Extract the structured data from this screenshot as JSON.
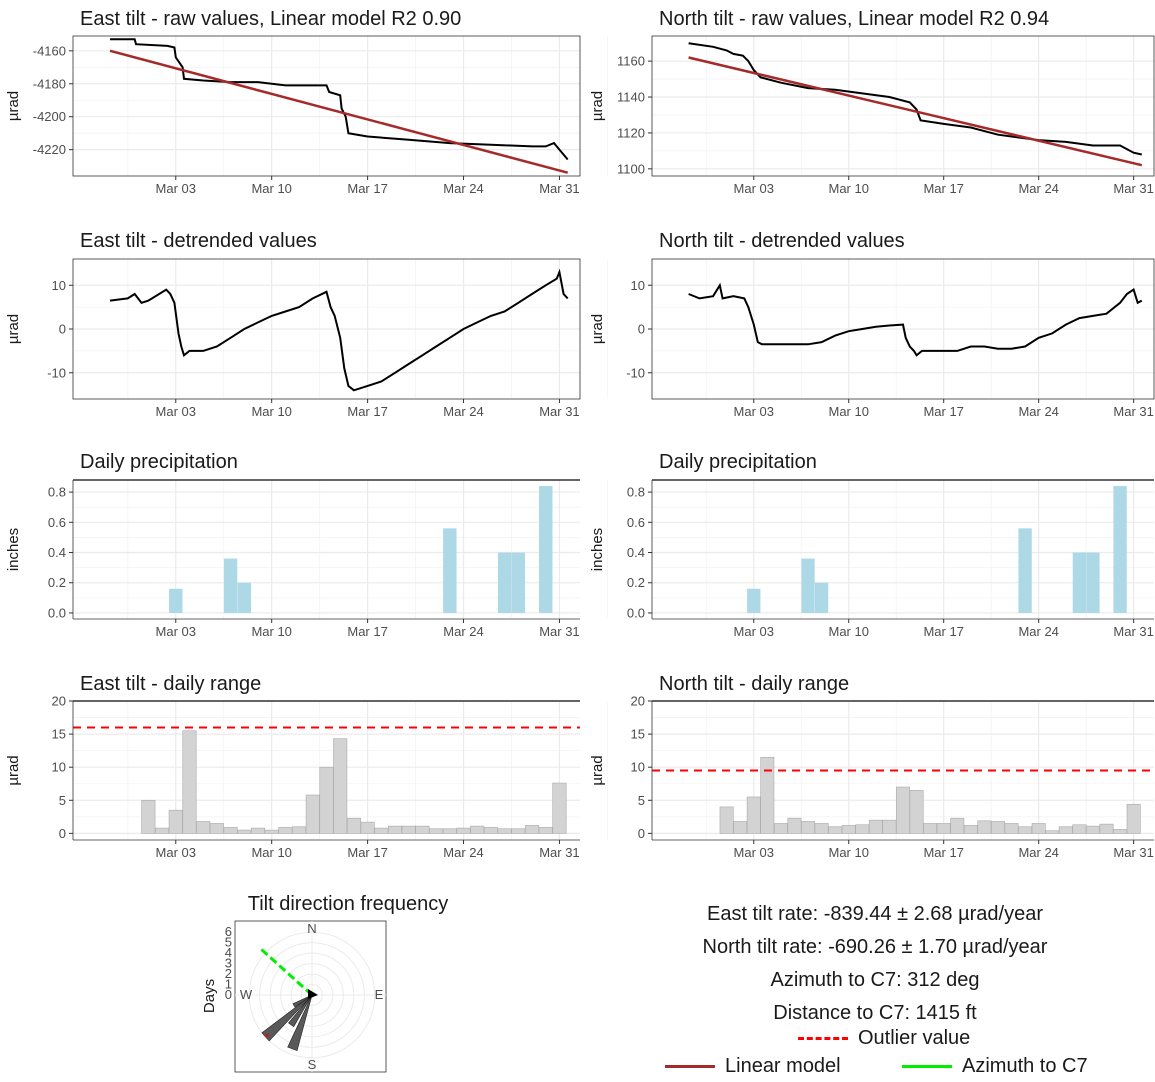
{
  "ticks_date": [
    "Mar 03",
    "Mar 10",
    "Mar 17",
    "Mar 24",
    "Mar 31"
  ],
  "colors": {
    "line": "#000000",
    "model": "#a52a2a",
    "precip": "#add8e6",
    "range": "#d3d3d3",
    "outlier": "#ff0000",
    "azimuth": "#00ee00",
    "rose": "#595959",
    "grid": "#ebebeb"
  },
  "chart_data": [
    {
      "id": "east_raw",
      "type": "line",
      "title": "East tilt - raw values, Linear model R2 0.90",
      "ylabel": "µrad",
      "yticks": [
        "-4160",
        "-4180",
        "-4200",
        "-4220"
      ],
      "yticks_v": [
        -4160,
        -4180,
        -4200,
        -4220
      ],
      "ylim": [
        -4236,
        -4151
      ],
      "xlim": [
        -4.5,
        32.5
      ],
      "series": [
        {
          "name": "raw",
          "pts": [
            [
              -1.8,
              -4153
            ],
            [
              0,
              -4153
            ],
            [
              0.1,
              -4156
            ],
            [
              2.4,
              -4157
            ],
            [
              2.9,
              -4158
            ],
            [
              3,
              -4164
            ],
            [
              3.5,
              -4170
            ],
            [
              3.6,
              -4177
            ],
            [
              5,
              -4178
            ],
            [
              7,
              -4179
            ],
            [
              9,
              -4179
            ],
            [
              11,
              -4181
            ],
            [
              14,
              -4181
            ],
            [
              14.2,
              -4185
            ],
            [
              15,
              -4187
            ],
            [
              15.1,
              -4195
            ],
            [
              15.4,
              -4200
            ],
            [
              15.6,
              -4210
            ],
            [
              17,
              -4212
            ],
            [
              20,
              -4214
            ],
            [
              23,
              -4216
            ],
            [
              26,
              -4217
            ],
            [
              29,
              -4218
            ],
            [
              30,
              -4218
            ],
            [
              30.6,
              -4216
            ],
            [
              31,
              -4220
            ],
            [
              31.6,
              -4226
            ]
          ]
        },
        {
          "name": "Linear model",
          "pts": [
            [
              -1.8,
              -4160
            ],
            [
              31.6,
              -4234
            ]
          ]
        }
      ]
    },
    {
      "id": "north_raw",
      "type": "line",
      "title": "North tilt - raw values, Linear model R2 0.94",
      "ylabel": "µrad",
      "yticks": [
        "1160",
        "1140",
        "1120",
        "1100"
      ],
      "yticks_v": [
        1160,
        1140,
        1120,
        1100
      ],
      "ylim": [
        1096,
        1174
      ],
      "xlim": [
        -4.5,
        32.5
      ],
      "series": [
        {
          "name": "raw",
          "pts": [
            [
              -1.8,
              1170
            ],
            [
              0,
              1168
            ],
            [
              1,
              1166
            ],
            [
              1.5,
              1164
            ],
            [
              2.2,
              1163
            ],
            [
              2.6,
              1160
            ],
            [
              3,
              1155
            ],
            [
              3.5,
              1151
            ],
            [
              5,
              1148
            ],
            [
              7,
              1145
            ],
            [
              9,
              1144
            ],
            [
              11,
              1142
            ],
            [
              13,
              1140
            ],
            [
              14.5,
              1137
            ],
            [
              15,
              1133
            ],
            [
              15.3,
              1127
            ],
            [
              17,
              1125
            ],
            [
              19,
              1123
            ],
            [
              21,
              1119
            ],
            [
              24,
              1116
            ],
            [
              26,
              1115
            ],
            [
              28,
              1113
            ],
            [
              30,
              1113
            ],
            [
              31,
              1109
            ],
            [
              31.6,
              1108
            ]
          ]
        },
        {
          "name": "Linear model",
          "pts": [
            [
              -1.8,
              1162
            ],
            [
              31.6,
              1102
            ]
          ]
        }
      ]
    },
    {
      "id": "east_detr",
      "type": "line",
      "title": "East tilt - detrended values",
      "ylabel": "µrad",
      "yticks": [
        "10",
        "0",
        "-10"
      ],
      "yticks_v": [
        10,
        0,
        -10
      ],
      "ylim": [
        -16,
        16
      ],
      "xlim": [
        -4.5,
        32.5
      ],
      "series": [
        {
          "name": "detrended",
          "pts": [
            [
              -1.8,
              6.5
            ],
            [
              -0.5,
              7
            ],
            [
              0,
              8
            ],
            [
              0.5,
              6
            ],
            [
              1,
              6.5
            ],
            [
              2.3,
              9
            ],
            [
              2.6,
              8
            ],
            [
              2.9,
              6
            ],
            [
              3.2,
              -1
            ],
            [
              3.4,
              -4
            ],
            [
              3.6,
              -6
            ],
            [
              4,
              -5
            ],
            [
              5,
              -5
            ],
            [
              6,
              -4
            ],
            [
              7,
              -2
            ],
            [
              8,
              0
            ],
            [
              9,
              1.5
            ],
            [
              10,
              3
            ],
            [
              11,
              4
            ],
            [
              12,
              5
            ],
            [
              13,
              7
            ],
            [
              14,
              8.5
            ],
            [
              14.3,
              5
            ],
            [
              14.6,
              3
            ],
            [
              15,
              -2
            ],
            [
              15.3,
              -9
            ],
            [
              15.6,
              -13
            ],
            [
              16,
              -14
            ],
            [
              17,
              -13
            ],
            [
              18,
              -12
            ],
            [
              19,
              -10
            ],
            [
              20,
              -8
            ],
            [
              21,
              -6
            ],
            [
              22,
              -4
            ],
            [
              23,
              -2
            ],
            [
              24,
              0
            ],
            [
              25,
              1.5
            ],
            [
              26,
              3
            ],
            [
              27,
              4
            ],
            [
              28,
              6
            ],
            [
              29,
              8
            ],
            [
              30,
              10
            ],
            [
              30.8,
              11.5
            ],
            [
              31,
              13
            ],
            [
              31.3,
              8
            ],
            [
              31.6,
              7
            ]
          ]
        }
      ]
    },
    {
      "id": "north_detr",
      "type": "line",
      "title": "North tilt - detrended values",
      "ylabel": "µrad",
      "yticks": [
        "10",
        "0",
        "-10"
      ],
      "yticks_v": [
        10,
        0,
        -10
      ],
      "ylim": [
        -16,
        16
      ],
      "xlim": [
        -4.5,
        32.5
      ],
      "series": [
        {
          "name": "detrended",
          "pts": [
            [
              -1.8,
              8
            ],
            [
              -1,
              7
            ],
            [
              0,
              7.5
            ],
            [
              0.5,
              10
            ],
            [
              0.7,
              7
            ],
            [
              1.5,
              7.5
            ],
            [
              2.3,
              7
            ],
            [
              2.6,
              5
            ],
            [
              3,
              1
            ],
            [
              3.3,
              -3
            ],
            [
              3.6,
              -3.5
            ],
            [
              5,
              -3.5
            ],
            [
              7,
              -3.5
            ],
            [
              8,
              -3
            ],
            [
              9,
              -1.5
            ],
            [
              10,
              -0.5
            ],
            [
              11,
              0
            ],
            [
              12,
              0.5
            ],
            [
              13,
              0.8
            ],
            [
              14,
              1
            ],
            [
              14.2,
              -2
            ],
            [
              14.5,
              -4
            ],
            [
              14.8,
              -5
            ],
            [
              15,
              -6
            ],
            [
              15.4,
              -5
            ],
            [
              16,
              -5
            ],
            [
              17,
              -5
            ],
            [
              18,
              -5
            ],
            [
              19,
              -4
            ],
            [
              20,
              -4
            ],
            [
              21,
              -4.5
            ],
            [
              22,
              -4.5
            ],
            [
              23,
              -4
            ],
            [
              24,
              -2
            ],
            [
              25,
              -1
            ],
            [
              26,
              1
            ],
            [
              27,
              2.5
            ],
            [
              28,
              3
            ],
            [
              29,
              3.5
            ],
            [
              30,
              6
            ],
            [
              30.5,
              8
            ],
            [
              31,
              9
            ],
            [
              31.3,
              6
            ],
            [
              31.6,
              6.5
            ]
          ]
        }
      ]
    },
    {
      "id": "east_precip",
      "type": "bar",
      "title": "Daily precipitation",
      "ylabel": "inches",
      "yticks": [
        "0.8",
        "0.6",
        "0.4",
        "0.2",
        "0.0"
      ],
      "yticks_v": [
        0.8,
        0.6,
        0.4,
        0.2,
        0.0
      ],
      "ylim": [
        -0.04,
        0.88
      ],
      "xlim": [
        -4.5,
        32.5
      ],
      "x": [
        3,
        7,
        8,
        23,
        27,
        28,
        30
      ],
      "values": [
        0.16,
        0.36,
        0.2,
        0.56,
        0.4,
        0.4,
        0.84
      ]
    },
    {
      "id": "north_precip",
      "type": "bar",
      "title": "Daily precipitation",
      "ylabel": "inches",
      "yticks": [
        "0.8",
        "0.6",
        "0.4",
        "0.2",
        "0.0"
      ],
      "yticks_v": [
        0.8,
        0.6,
        0.4,
        0.2,
        0.0
      ],
      "ylim": [
        -0.04,
        0.88
      ],
      "xlim": [
        -4.5,
        32.5
      ],
      "x": [
        3,
        7,
        8,
        23,
        27,
        28,
        30
      ],
      "values": [
        0.16,
        0.36,
        0.2,
        0.56,
        0.4,
        0.4,
        0.84
      ]
    },
    {
      "id": "east_range",
      "type": "bar",
      "title": "East tilt - daily range",
      "ylabel": "µrad",
      "yticks": [
        "20",
        "15",
        "10",
        "5",
        "0"
      ],
      "yticks_v": [
        20,
        15,
        10,
        5,
        0
      ],
      "ylim": [
        -1,
        20
      ],
      "xlim": [
        -4.5,
        32.5
      ],
      "outlier": 16,
      "x": [
        1,
        2,
        3,
        4,
        5,
        6,
        7,
        8,
        9,
        10,
        11,
        12,
        13,
        14,
        15,
        16,
        17,
        18,
        19,
        20,
        21,
        22,
        23,
        24,
        25,
        26,
        27,
        28,
        29,
        30,
        31
      ],
      "values": [
        5,
        0.8,
        3.5,
        15.5,
        1.8,
        1.5,
        0.9,
        0.5,
        0.8,
        0.5,
        0.9,
        1,
        5.8,
        10,
        14.3,
        2.3,
        1.7,
        0.8,
        1.1,
        1.1,
        1.1,
        0.7,
        0.7,
        0.8,
        1.1,
        0.9,
        0.7,
        0.7,
        1.2,
        0.9,
        7.6
      ]
    },
    {
      "id": "north_range",
      "type": "bar",
      "title": "North tilt - daily range",
      "ylabel": "µrad",
      "yticks": [
        "20",
        "15",
        "10",
        "5",
        "0"
      ],
      "yticks_v": [
        20,
        15,
        10,
        5,
        0
      ],
      "ylim": [
        -1,
        20
      ],
      "xlim": [
        -4.5,
        32.5
      ],
      "outlier": 9.5,
      "x": [
        1,
        2,
        3,
        4,
        5,
        6,
        7,
        8,
        9,
        10,
        11,
        12,
        13,
        14,
        15,
        16,
        17,
        18,
        19,
        20,
        21,
        22,
        23,
        24,
        25,
        26,
        27,
        28,
        29,
        30,
        31
      ],
      "values": [
        4,
        1.8,
        5.5,
        11.5,
        1.5,
        2.3,
        1.8,
        1.5,
        1,
        1.2,
        1.3,
        2,
        2,
        7,
        6.5,
        1.5,
        1.5,
        2.3,
        1.2,
        1.9,
        1.8,
        1.5,
        1,
        1.5,
        0.4,
        1,
        1.3,
        1.1,
        1.4,
        0.6,
        4.4
      ]
    },
    {
      "id": "rose",
      "type": "rose",
      "title": "Tilt direction frequency",
      "ylabel": "Days",
      "rticks": [
        "0",
        "1",
        "2",
        "3",
        "4",
        "5",
        "6"
      ],
      "directions": [
        "N",
        "E",
        "S",
        "W"
      ],
      "petals": [
        {
          "deg": 200,
          "len": 5.5
        },
        {
          "deg": 215,
          "len": 3.5
        },
        {
          "deg": 228,
          "len": 6
        },
        {
          "deg": 240,
          "len": 2
        }
      ],
      "azimuth_deg": 312,
      "rmax": 6.5
    }
  ],
  "summary": {
    "east_rate": "East tilt rate: -839.44 ± 2.68 µrad/year",
    "north_rate": "North tilt rate: -690.26 ± 1.70 µrad/year",
    "azimuth": "Azimuth to C7: 312 deg",
    "distance": "Distance to C7: 1415 ft"
  },
  "legend": {
    "outlier": "Outlier value",
    "model": "Linear model",
    "azimuth": "Azimuth to C7"
  }
}
